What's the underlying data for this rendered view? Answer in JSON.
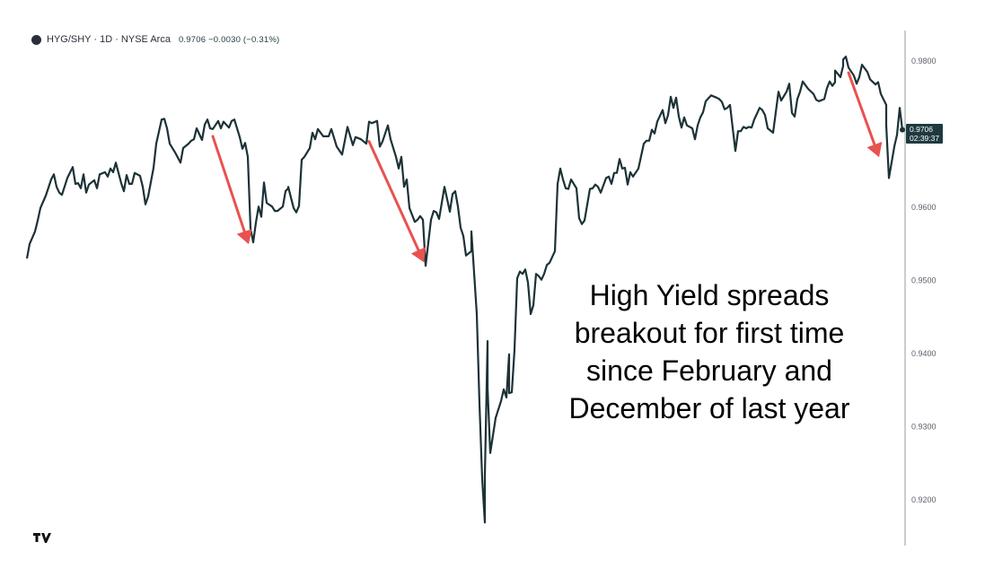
{
  "header": {
    "symbol_icon": "symbol-logo-icon",
    "title": "HYG/SHY · 1D · NYSE Arca",
    "last": "0.9706",
    "change": "−0.0030",
    "change_pct": "(−0.31%)"
  },
  "annotation": {
    "lines": [
      "High Yield spreads",
      "breakout for first time",
      "since February and",
      "December of last year"
    ]
  },
  "price_tag": {
    "value": "0.9706",
    "countdown": "02:39:37"
  },
  "logo": "TV",
  "colors": {
    "line": "#1c3237",
    "arrow": "#e8524f",
    "price_tag": "#1e3a3f"
  },
  "chart_data": {
    "type": "line",
    "title": "",
    "xlabel": "",
    "ylabel": "",
    "y_axis_position": "right",
    "ylim": [
      0.914,
      0.987
    ],
    "xlim": [
      0,
      325
    ],
    "y_ticks": [
      "0.9800",
      "0.9600",
      "0.9500",
      "0.9400",
      "0.9300",
      "0.9200"
    ],
    "grid": false,
    "points": [
      [
        0,
        0.953
      ],
      [
        1,
        0.955
      ],
      [
        3,
        0.9567
      ],
      [
        4,
        0.9582
      ],
      [
        5,
        0.9599
      ],
      [
        7,
        0.9616
      ],
      [
        9,
        0.9638
      ],
      [
        10,
        0.9645
      ],
      [
        11,
        0.9628
      ],
      [
        12,
        0.962
      ],
      [
        13,
        0.9617
      ],
      [
        15,
        0.964
      ],
      [
        17,
        0.9655
      ],
      [
        18,
        0.9632
      ],
      [
        19,
        0.9633
      ],
      [
        20,
        0.9626
      ],
      [
        21,
        0.9645
      ],
      [
        22,
        0.962
      ],
      [
        23,
        0.9631
      ],
      [
        25,
        0.9637
      ],
      [
        26,
        0.9626
      ],
      [
        27,
        0.9645
      ],
      [
        29,
        0.9648
      ],
      [
        30,
        0.9642
      ],
      [
        31,
        0.9653
      ],
      [
        32,
        0.9648
      ],
      [
        33,
        0.9661
      ],
      [
        35,
        0.9633
      ],
      [
        36,
        0.9622
      ],
      [
        37,
        0.9644
      ],
      [
        38,
        0.9632
      ],
      [
        39,
        0.9632
      ],
      [
        40,
        0.9647
      ],
      [
        42,
        0.9643
      ],
      [
        43,
        0.9628
      ],
      [
        44,
        0.9604
      ],
      [
        45,
        0.9615
      ],
      [
        47,
        0.9654
      ],
      [
        48,
        0.9687
      ],
      [
        50,
        0.972
      ],
      [
        51,
        0.9721
      ],
      [
        52,
        0.9708
      ],
      [
        53,
        0.9687
      ],
      [
        55,
        0.9675
      ],
      [
        57,
        0.9661
      ],
      [
        58,
        0.9681
      ],
      [
        60,
        0.9687
      ],
      [
        61,
        0.9691
      ],
      [
        62,
        0.9693
      ],
      [
        63,
        0.9708
      ],
      [
        65,
        0.9692
      ],
      [
        66,
        0.9713
      ],
      [
        67,
        0.972
      ],
      [
        68,
        0.9708
      ],
      [
        69,
        0.9707
      ],
      [
        71,
        0.9718
      ],
      [
        72,
        0.9708
      ],
      [
        73,
        0.9717
      ],
      [
        75,
        0.9709
      ],
      [
        76,
        0.9718
      ],
      [
        77,
        0.972
      ],
      [
        79,
        0.9696
      ],
      [
        80,
        0.968
      ],
      [
        81,
        0.9688
      ],
      [
        82,
        0.9669
      ],
      [
        83,
        0.9571
      ],
      [
        84,
        0.9552
      ],
      [
        85,
        0.9579
      ],
      [
        86,
        0.9601
      ],
      [
        87,
        0.9587
      ],
      [
        88,
        0.9634
      ],
      [
        89,
        0.9606
      ],
      [
        91,
        0.9601
      ],
      [
        92,
        0.9595
      ],
      [
        93,
        0.9595
      ],
      [
        95,
        0.9601
      ],
      [
        96,
        0.9622
      ],
      [
        97,
        0.9626
      ],
      [
        97,
        0.9628
      ],
      [
        99,
        0.9599
      ],
      [
        100,
        0.9593
      ],
      [
        101,
        0.9602
      ],
      [
        102,
        0.9665
      ],
      [
        103,
        0.9669
      ],
      [
        105,
        0.9681
      ],
      [
        106,
        0.9702
      ],
      [
        107,
        0.9693
      ],
      [
        108,
        0.9707
      ],
      [
        110,
        0.9697
      ],
      [
        112,
        0.9697
      ],
      [
        113,
        0.9707
      ],
      [
        115,
        0.9683
      ],
      [
        117,
        0.9672
      ],
      [
        119,
        0.971
      ],
      [
        121,
        0.9685
      ],
      [
        122,
        0.9696
      ],
      [
        124,
        0.9693
      ],
      [
        126,
        0.9687
      ],
      [
        127,
        0.9717
      ],
      [
        128,
        0.9715
      ],
      [
        130,
        0.9718
      ],
      [
        131,
        0.9683
      ],
      [
        132,
        0.969
      ],
      [
        134,
        0.9712
      ],
      [
        135,
        0.9693
      ],
      [
        137,
        0.9669
      ],
      [
        138,
        0.9653
      ],
      [
        139,
        0.9669
      ],
      [
        140,
        0.9628
      ],
      [
        141,
        0.9638
      ],
      [
        142,
        0.9599
      ],
      [
        144,
        0.958
      ],
      [
        145,
        0.9583
      ],
      [
        146,
        0.9588
      ],
      [
        147,
        0.9583
      ],
      [
        148,
        0.952
      ],
      [
        150,
        0.9583
      ],
      [
        151,
        0.9595
      ],
      [
        152,
        0.9593
      ],
      [
        153,
        0.9584
      ],
      [
        155,
        0.9628
      ],
      [
        156,
        0.9611
      ],
      [
        157,
        0.9594
      ],
      [
        158,
        0.9618
      ],
      [
        159,
        0.9622
      ],
      [
        160,
        0.9601
      ],
      [
        161,
        0.9572
      ],
      [
        162,
        0.9561
      ],
      [
        163,
        0.9534
      ],
      [
        164,
        0.9537
      ],
      [
        165,
        0.954
      ],
      [
        165,
        0.9567
      ],
      [
        167,
        0.9454
      ],
      [
        168,
        0.9331
      ],
      [
        169,
        0.9229
      ],
      [
        170,
        0.9169
      ],
      [
        170,
        0.9233
      ],
      [
        171,
        0.9417
      ],
      [
        171,
        0.9353
      ],
      [
        172,
        0.9264
      ],
      [
        173,
        0.9288
      ],
      [
        174,
        0.9312
      ],
      [
        176,
        0.9335
      ],
      [
        177,
        0.9351
      ],
      [
        178,
        0.934
      ],
      [
        179,
        0.9399
      ],
      [
        179,
        0.9346
      ],
      [
        180,
        0.9347
      ],
      [
        181,
        0.9405
      ],
      [
        182,
        0.9503
      ],
      [
        183,
        0.9512
      ],
      [
        184,
        0.9509
      ],
      [
        185,
        0.9515
      ],
      [
        186,
        0.9497
      ],
      [
        187,
        0.9454
      ],
      [
        188,
        0.9466
      ],
      [
        189,
        0.9509
      ],
      [
        190,
        0.9506
      ],
      [
        191,
        0.9501
      ],
      [
        192,
        0.9509
      ],
      [
        193,
        0.9521
      ],
      [
        194,
        0.9524
      ],
      [
        196,
        0.954
      ],
      [
        197,
        0.9632
      ],
      [
        198,
        0.9653
      ],
      [
        199,
        0.9638
      ],
      [
        200,
        0.9626
      ],
      [
        201,
        0.9625
      ],
      [
        202,
        0.9638
      ],
      [
        204,
        0.9626
      ],
      [
        205,
        0.9585
      ],
      [
        206,
        0.9577
      ],
      [
        207,
        0.9582
      ],
      [
        209,
        0.9625
      ],
      [
        210,
        0.9626
      ],
      [
        211,
        0.9631
      ],
      [
        212,
        0.9628
      ],
      [
        213,
        0.962
      ],
      [
        215,
        0.964
      ],
      [
        216,
        0.9642
      ],
      [
        217,
        0.9632
      ],
      [
        218,
        0.9647
      ],
      [
        219,
        0.9647
      ],
      [
        220,
        0.9666
      ],
      [
        221,
        0.9653
      ],
      [
        222,
        0.9654
      ],
      [
        223,
        0.9631
      ],
      [
        224,
        0.9648
      ],
      [
        225,
        0.9642
      ],
      [
        227,
        0.9653
      ],
      [
        228,
        0.967
      ],
      [
        229,
        0.9687
      ],
      [
        230,
        0.9691
      ],
      [
        231,
        0.9691
      ],
      [
        232,
        0.9706
      ],
      [
        233,
        0.9701
      ],
      [
        234,
        0.9717
      ],
      [
        236,
        0.9733
      ],
      [
        237,
        0.9715
      ],
      [
        238,
        0.9726
      ],
      [
        239,
        0.9751
      ],
      [
        240,
        0.9736
      ],
      [
        241,
        0.975
      ],
      [
        242,
        0.9724
      ],
      [
        243,
        0.9709
      ],
      [
        244,
        0.9723
      ],
      [
        245,
        0.9712
      ],
      [
        247,
        0.9708
      ],
      [
        248,
        0.9693
      ],
      [
        249,
        0.9712
      ],
      [
        250,
        0.9723
      ],
      [
        251,
        0.973
      ],
      [
        252,
        0.9745
      ],
      [
        254,
        0.9753
      ],
      [
        256,
        0.975
      ],
      [
        257,
        0.9748
      ],
      [
        258,
        0.9744
      ],
      [
        259,
        0.9734
      ],
      [
        260,
        0.9736
      ],
      [
        261,
        0.974
      ],
      [
        263,
        0.9677
      ],
      [
        264,
        0.9704
      ],
      [
        265,
        0.9704
      ],
      [
        266,
        0.971
      ],
      [
        267,
        0.9708
      ],
      [
        268,
        0.971
      ],
      [
        269,
        0.9709
      ],
      [
        270,
        0.972
      ],
      [
        272,
        0.9736
      ],
      [
        273,
        0.9733
      ],
      [
        274,
        0.9726
      ],
      [
        275,
        0.9708
      ],
      [
        277,
        0.9702
      ],
      [
        279,
        0.9758
      ],
      [
        280,
        0.9746
      ],
      [
        282,
        0.9758
      ],
      [
        283,
        0.9769
      ],
      [
        284,
        0.9729
      ],
      [
        285,
        0.9724
      ],
      [
        286,
        0.9748
      ],
      [
        287,
        0.9758
      ],
      [
        288,
        0.9772
      ],
      [
        290,
        0.9762
      ],
      [
        292,
        0.9755
      ],
      [
        293,
        0.9747
      ],
      [
        294,
        0.9745
      ],
      [
        296,
        0.9748
      ],
      [
        297,
        0.9763
      ],
      [
        298,
        0.9772
      ],
      [
        299,
        0.9766
      ],
      [
        300,
        0.9771
      ],
      [
        300,
        0.9787
      ],
      [
        302,
        0.9778
      ],
      [
        303,
        0.9793
      ],
      [
        303,
        0.9802
      ],
      [
        304,
        0.9806
      ],
      [
        305,
        0.9791
      ],
      [
        307,
        0.978
      ],
      [
        308,
        0.9769
      ],
      [
        309,
        0.9778
      ],
      [
        310,
        0.9795
      ],
      [
        312,
        0.9785
      ],
      [
        313,
        0.9775
      ],
      [
        315,
        0.9768
      ],
      [
        316,
        0.9771
      ],
      [
        317,
        0.9755
      ],
      [
        319,
        0.974
      ],
      [
        319,
        0.9712
      ],
      [
        320,
        0.964
      ],
      [
        322,
        0.9683
      ],
      [
        323,
        0.9699
      ],
      [
        324,
        0.9736
      ],
      [
        325,
        0.9706
      ]
    ],
    "arrows": [
      {
        "from": [
          69,
          0.9697
        ],
        "to": [
          82,
          0.9553
        ]
      },
      {
        "from": [
          127,
          0.969
        ],
        "to": [
          147,
          0.9528
        ]
      },
      {
        "from": [
          305,
          0.9784
        ],
        "to": [
          316,
          0.9672
        ]
      }
    ]
  }
}
